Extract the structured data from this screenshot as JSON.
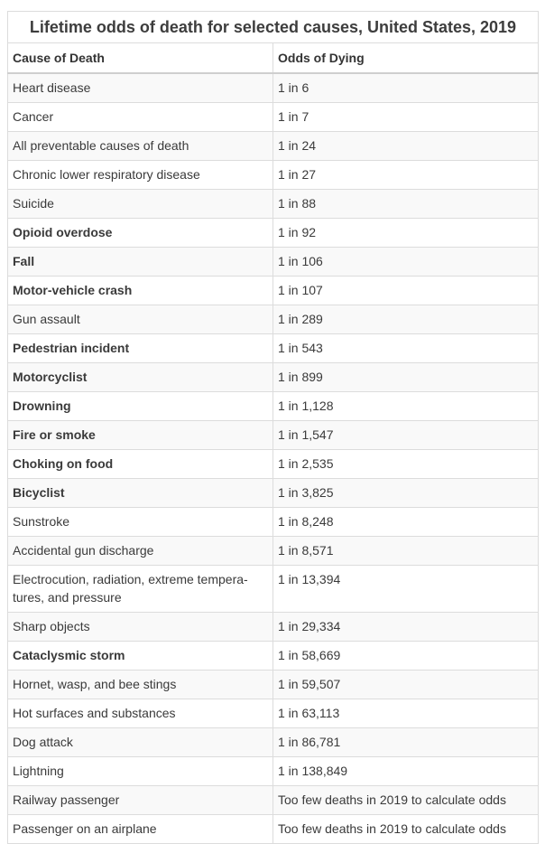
{
  "table": {
    "title": "Lifetime odds of death for selected causes, United States, 2019",
    "headers": [
      "Cause of Death",
      "Odds of Dying"
    ],
    "rows": [
      {
        "cause": "Heart disease",
        "odds": "1 in 6"
      },
      {
        "cause": "Cancer",
        "odds": "1 in 7"
      },
      {
        "cause": "All preventable causes of death",
        "odds": "1 in 24"
      },
      {
        "cause": "Chronic lower respiratory disease",
        "odds": "1 in 27"
      },
      {
        "cause": "Suicide",
        "odds": "1 in 88"
      },
      {
        "cause": "Opioid overdose",
        "odds": "1 in 92"
      },
      {
        "cause": "Fall",
        "odds": "1 in 106"
      },
      {
        "cause": "Motor-vehicle crash",
        "odds": "1 in 107"
      },
      {
        "cause": "Gun assault",
        "odds": "1 in 289"
      },
      {
        "cause": "Pedestrian incident",
        "odds": "1 in 543"
      },
      {
        "cause": "Motorcyclist",
        "odds": "1 in 899"
      },
      {
        "cause": "Drowning",
        "odds": "1 in 1,128"
      },
      {
        "cause": "Fire or smoke",
        "odds": "1 in 1,547"
      },
      {
        "cause": "Choking on food",
        "odds": "1 in 2,535"
      },
      {
        "cause": "Bicyclist",
        "odds": "1 in 3,825"
      },
      {
        "cause": "Sunstroke",
        "odds": "1 in 8,248"
      },
      {
        "cause": "Accidental gun discharge",
        "odds": "1 in 8,571"
      },
      {
        "cause": "Electrocution, radiation, extreme tempera-tures, and pressure",
        "odds": "1 in 13,394"
      },
      {
        "cause": "Sharp objects",
        "odds": "1 in 29,334"
      },
      {
        "cause": "Cataclysmic storm",
        "odds": "1 in 58,669"
      },
      {
        "cause": "Hornet, wasp, and bee stings",
        "odds": "1 in 59,507"
      },
      {
        "cause": "Hot surfaces and substances",
        "odds": "1 in 63,113"
      },
      {
        "cause": "Dog attack",
        "odds": "1 in 86,781"
      },
      {
        "cause": "Lightning",
        "odds": "1 in 138,849"
      },
      {
        "cause": "Railway passenger",
        "odds": "Too few deaths in 2019 to calculate odds"
      },
      {
        "cause": "Passenger on an airplane",
        "odds": "Too few deaths in 2019 to calculate odds"
      }
    ]
  }
}
